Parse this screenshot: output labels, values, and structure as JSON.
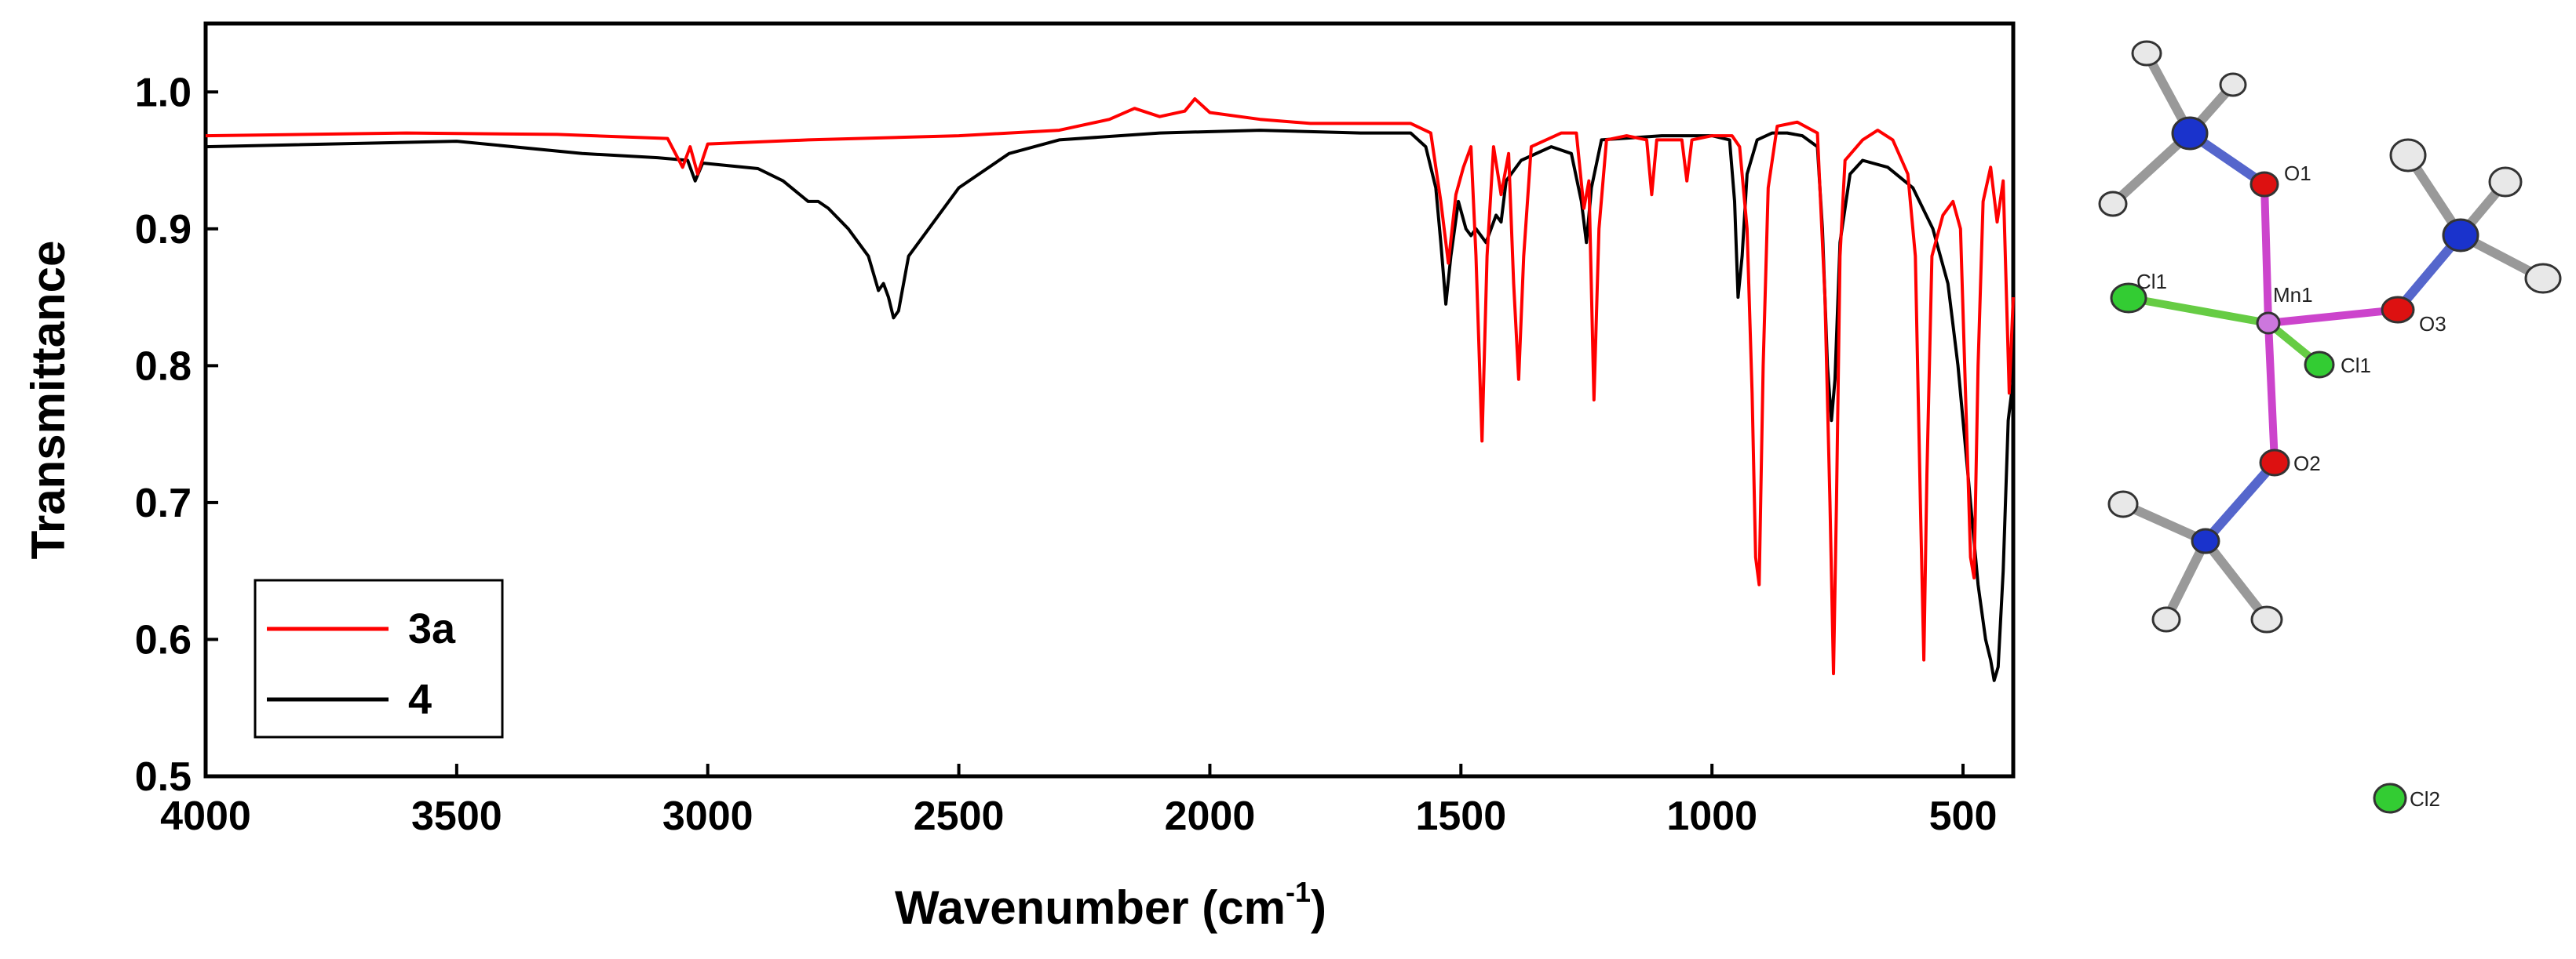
{
  "chart_data": {
    "type": "line",
    "title": "",
    "xlabel": "Wavenumber (cm",
    "xlabel_sup": "-1",
    "xlabel_close": ")",
    "ylabel": "Transmittance",
    "xlim": [
      4000,
      400
    ],
    "ylim": [
      0.5,
      1.05
    ],
    "xticks": [
      4000,
      3500,
      3000,
      2500,
      2000,
      1500,
      1000,
      500
    ],
    "xtick_labels": [
      "4000",
      "3500",
      "3000",
      "2500",
      "2000",
      "1500",
      "1000",
      "500"
    ],
    "yticks": [
      0.5,
      0.6,
      0.7,
      0.8,
      0.9,
      1.0
    ],
    "ytick_labels": [
      "0.5",
      "0.6",
      "0.7",
      "0.8",
      "0.9",
      "1.0"
    ],
    "legend_position": "bottom-left",
    "series": [
      {
        "name": "3a",
        "color": "#ff0000",
        "points": [
          [
            4000,
            0.968
          ],
          [
            3600,
            0.97
          ],
          [
            3300,
            0.969
          ],
          [
            3080,
            0.966
          ],
          [
            3050,
            0.945
          ],
          [
            3035,
            0.96
          ],
          [
            3020,
            0.94
          ],
          [
            3000,
            0.962
          ],
          [
            2800,
            0.965
          ],
          [
            2500,
            0.968
          ],
          [
            2300,
            0.972
          ],
          [
            2200,
            0.98
          ],
          [
            2150,
            0.988
          ],
          [
            2100,
            0.982
          ],
          [
            2050,
            0.986
          ],
          [
            2030,
            0.995
          ],
          [
            2000,
            0.985
          ],
          [
            1900,
            0.98
          ],
          [
            1800,
            0.977
          ],
          [
            1600,
            0.977
          ],
          [
            1560,
            0.97
          ],
          [
            1540,
            0.92
          ],
          [
            1525,
            0.875
          ],
          [
            1510,
            0.925
          ],
          [
            1495,
            0.945
          ],
          [
            1480,
            0.96
          ],
          [
            1470,
            0.88
          ],
          [
            1458,
            0.745
          ],
          [
            1448,
            0.88
          ],
          [
            1435,
            0.96
          ],
          [
            1420,
            0.925
          ],
          [
            1405,
            0.955
          ],
          [
            1395,
            0.86
          ],
          [
            1385,
            0.79
          ],
          [
            1375,
            0.88
          ],
          [
            1360,
            0.96
          ],
          [
            1300,
            0.97
          ],
          [
            1270,
            0.97
          ],
          [
            1255,
            0.915
          ],
          [
            1245,
            0.935
          ],
          [
            1235,
            0.775
          ],
          [
            1225,
            0.9
          ],
          [
            1210,
            0.965
          ],
          [
            1170,
            0.968
          ],
          [
            1130,
            0.965
          ],
          [
            1120,
            0.925
          ],
          [
            1110,
            0.965
          ],
          [
            1060,
            0.965
          ],
          [
            1050,
            0.935
          ],
          [
            1040,
            0.965
          ],
          [
            1000,
            0.968
          ],
          [
            960,
            0.968
          ],
          [
            945,
            0.96
          ],
          [
            930,
            0.9
          ],
          [
            920,
            0.78
          ],
          [
            913,
            0.66
          ],
          [
            906,
            0.64
          ],
          [
            898,
            0.8
          ],
          [
            888,
            0.93
          ],
          [
            870,
            0.975
          ],
          [
            830,
            0.978
          ],
          [
            790,
            0.97
          ],
          [
            775,
            0.85
          ],
          [
            765,
            0.7
          ],
          [
            758,
            0.575
          ],
          [
            752,
            0.7
          ],
          [
            745,
            0.88
          ],
          [
            735,
            0.95
          ],
          [
            700,
            0.965
          ],
          [
            670,
            0.972
          ],
          [
            640,
            0.965
          ],
          [
            610,
            0.94
          ],
          [
            595,
            0.88
          ],
          [
            585,
            0.7
          ],
          [
            578,
            0.585
          ],
          [
            572,
            0.72
          ],
          [
            562,
            0.88
          ],
          [
            540,
            0.91
          ],
          [
            520,
            0.92
          ],
          [
            505,
            0.9
          ],
          [
            495,
            0.78
          ],
          [
            485,
            0.66
          ],
          [
            478,
            0.645
          ],
          [
            470,
            0.8
          ],
          [
            460,
            0.92
          ],
          [
            445,
            0.945
          ],
          [
            432,
            0.905
          ],
          [
            420,
            0.935
          ],
          [
            408,
            0.78
          ],
          [
            400,
            0.85
          ]
        ]
      },
      {
        "name": "4",
        "color": "#000000",
        "points": [
          [
            4000,
            0.96
          ],
          [
            3500,
            0.964
          ],
          [
            3250,
            0.955
          ],
          [
            3100,
            0.952
          ],
          [
            3040,
            0.95
          ],
          [
            3025,
            0.935
          ],
          [
            3010,
            0.948
          ],
          [
            2900,
            0.944
          ],
          [
            2850,
            0.935
          ],
          [
            2800,
            0.92
          ],
          [
            2780,
            0.92
          ],
          [
            2760,
            0.915
          ],
          [
            2720,
            0.9
          ],
          [
            2680,
            0.88
          ],
          [
            2660,
            0.855
          ],
          [
            2650,
            0.86
          ],
          [
            2640,
            0.85
          ],
          [
            2630,
            0.835
          ],
          [
            2620,
            0.84
          ],
          [
            2600,
            0.88
          ],
          [
            2500,
            0.93
          ],
          [
            2400,
            0.955
          ],
          [
            2300,
            0.965
          ],
          [
            2100,
            0.97
          ],
          [
            1900,
            0.972
          ],
          [
            1700,
            0.97
          ],
          [
            1600,
            0.97
          ],
          [
            1570,
            0.96
          ],
          [
            1550,
            0.93
          ],
          [
            1540,
            0.89
          ],
          [
            1530,
            0.845
          ],
          [
            1520,
            0.88
          ],
          [
            1505,
            0.92
          ],
          [
            1490,
            0.9
          ],
          [
            1480,
            0.895
          ],
          [
            1470,
            0.9
          ],
          [
            1450,
            0.89
          ],
          [
            1430,
            0.91
          ],
          [
            1420,
            0.905
          ],
          [
            1410,
            0.935
          ],
          [
            1380,
            0.95
          ],
          [
            1320,
            0.96
          ],
          [
            1280,
            0.955
          ],
          [
            1260,
            0.92
          ],
          [
            1250,
            0.89
          ],
          [
            1240,
            0.93
          ],
          [
            1220,
            0.965
          ],
          [
            1100,
            0.968
          ],
          [
            1000,
            0.968
          ],
          [
            965,
            0.965
          ],
          [
            955,
            0.92
          ],
          [
            948,
            0.85
          ],
          [
            940,
            0.88
          ],
          [
            930,
            0.94
          ],
          [
            910,
            0.965
          ],
          [
            880,
            0.97
          ],
          [
            850,
            0.97
          ],
          [
            820,
            0.968
          ],
          [
            790,
            0.96
          ],
          [
            780,
            0.9
          ],
          [
            770,
            0.8
          ],
          [
            762,
            0.76
          ],
          [
            755,
            0.79
          ],
          [
            745,
            0.89
          ],
          [
            725,
            0.94
          ],
          [
            700,
            0.95
          ],
          [
            650,
            0.945
          ],
          [
            600,
            0.93
          ],
          [
            560,
            0.9
          ],
          [
            530,
            0.86
          ],
          [
            510,
            0.8
          ],
          [
            490,
            0.72
          ],
          [
            470,
            0.64
          ],
          [
            455,
            0.6
          ],
          [
            445,
            0.585
          ],
          [
            438,
            0.57
          ],
          [
            430,
            0.58
          ],
          [
            420,
            0.65
          ],
          [
            410,
            0.76
          ],
          [
            400,
            0.79
          ]
        ]
      }
    ]
  },
  "molecule": {
    "atom_labels": [
      "O1",
      "Cl1",
      "Mn1",
      "O3",
      "Cl1",
      "O2",
      "Cl2"
    ],
    "colors": {
      "N": "#1a33cc",
      "O": "#dd1111",
      "Cl": "#33cc33",
      "Mn": "#cc77dd",
      "H": "#dddddd",
      "bond": "#888888"
    }
  }
}
